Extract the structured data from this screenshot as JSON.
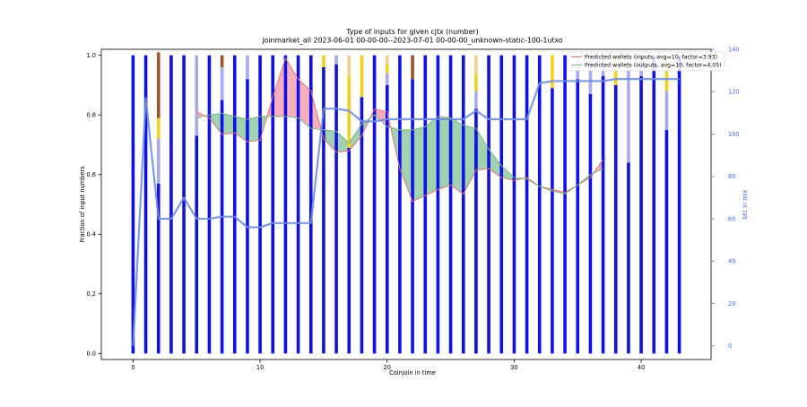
{
  "chart_data": {
    "type": "bar",
    "title": "Type of inputs for given cjtx (number)",
    "subtitle": "joinmarket_all 2023-06-01 00-00-00--2023-07-01 00-00-00_unknown-static-100-1utxo",
    "xlabel": "Coinjoin in time",
    "ylabel": "Fraction of input numbers",
    "y2label": "btc in mix",
    "xlim": [
      -2.5,
      45.5
    ],
    "ylim": [
      -0.02,
      1.02
    ],
    "y2lim": [
      -6.4,
      140
    ],
    "xticks": [
      0,
      10,
      20,
      30,
      40
    ],
    "yticks": [
      0.0,
      0.2,
      0.4,
      0.6,
      0.8,
      1.0
    ],
    "y2ticks": [
      0,
      20,
      40,
      60,
      80,
      100,
      120,
      140
    ],
    "grid": false,
    "legend_position": "top-right",
    "colors": {
      "fresh": "#1010e8",
      "remix": "#a9a9f0",
      "gold": "#f5d020",
      "peach": "#f7ce8a",
      "brown": "#a0522d",
      "btc_line": "#6f8ee0",
      "inputs_line": "#e57373",
      "outputs_line": "#7cb87c",
      "fill_red": "#f7a1b1",
      "fill_green": "#8fcaa2"
    },
    "bar_categories": [
      "fresh",
      "remix",
      "gold",
      "peach",
      "brown"
    ],
    "bars": [
      [
        1,
        0,
        0,
        0,
        0
      ],
      [
        1,
        0,
        0,
        0,
        0
      ],
      [
        0.57,
        0.15,
        0.07,
        0,
        0.22
      ],
      [
        1,
        0,
        0,
        0,
        0
      ],
      [
        1,
        0,
        0,
        0,
        0
      ],
      [
        0.73,
        0.27,
        0,
        0,
        0
      ],
      [
        1,
        0,
        0,
        0,
        0
      ],
      [
        0.85,
        0.11,
        0,
        0,
        0.04
      ],
      [
        1,
        0,
        0,
        0,
        0
      ],
      [
        0.92,
        0.08,
        0,
        0,
        0
      ],
      [
        1,
        0,
        0,
        0,
        0
      ],
      [
        1,
        0,
        0,
        0,
        0
      ],
      [
        1,
        0,
        0,
        0,
        0
      ],
      [
        1,
        0,
        0,
        0,
        0
      ],
      [
        1,
        0,
        0,
        0,
        0
      ],
      [
        0.96,
        0,
        0.04,
        0,
        0
      ],
      [
        0.97,
        0.03,
        0,
        0,
        0
      ],
      [
        0.69,
        0,
        0.24,
        0.07,
        0
      ],
      [
        0.86,
        0,
        0.14,
        0,
        0
      ],
      [
        1,
        0,
        0,
        0,
        0
      ],
      [
        0.9,
        0.04,
        0.03,
        0.03,
        0
      ],
      [
        1,
        0,
        0,
        0,
        0
      ],
      [
        0.92,
        0,
        0,
        0,
        0.08
      ],
      [
        1,
        0,
        0,
        0,
        0
      ],
      [
        1,
        0,
        0,
        0,
        0
      ],
      [
        1,
        0,
        0,
        0,
        0
      ],
      [
        1,
        0,
        0,
        0,
        0
      ],
      [
        0.82,
        0.06,
        0.06,
        0.06,
        0
      ],
      [
        1,
        0,
        0,
        0,
        0
      ],
      [
        1,
        0,
        0,
        0,
        0
      ],
      [
        1,
        0,
        0,
        0,
        0
      ],
      [
        1,
        0,
        0,
        0,
        0
      ],
      [
        1,
        0,
        0,
        0,
        0
      ],
      [
        0.89,
        0,
        0.11,
        0,
        0
      ],
      [
        1,
        0,
        0,
        0,
        0
      ],
      [
        0.92,
        0.08,
        0,
        0,
        0
      ],
      [
        0.87,
        0.13,
        0,
        0,
        0
      ],
      [
        0.93,
        0.07,
        0,
        0,
        0
      ],
      [
        0.9,
        0,
        0.1,
        0,
        0
      ],
      [
        0.64,
        0.32,
        0,
        0.04,
        0
      ],
      [
        0.93,
        0.07,
        0,
        0,
        0
      ],
      [
        1,
        0,
        0,
        0,
        0
      ],
      [
        0.75,
        0.13,
        0.12,
        0,
        0
      ],
      [
        1,
        0,
        0,
        0,
        0
      ]
    ],
    "btc_in_mix": [
      0,
      117,
      60,
      60,
      70,
      60,
      60,
      61,
      61,
      56,
      56,
      58,
      58,
      58,
      58,
      112,
      112,
      111,
      106,
      106,
      107,
      107,
      107,
      107,
      107,
      107,
      107,
      111,
      107,
      107,
      107,
      107,
      124,
      125,
      125,
      125,
      125,
      125,
      126,
      126,
      126,
      126,
      126,
      126
    ],
    "series": [
      {
        "name": "Predicted wallets (inputs, avg=10, factor=3.93)",
        "x": [
          5,
          6,
          7,
          8,
          9,
          10,
          11,
          12,
          13,
          14,
          15,
          16,
          17,
          18,
          19,
          20,
          21,
          22,
          23,
          24,
          25,
          26,
          27,
          28,
          29,
          30,
          31,
          32,
          33,
          34,
          35,
          36,
          37
        ],
        "values": [
          0.81,
          0.79,
          0.735,
          0.74,
          0.71,
          0.715,
          0.86,
          0.99,
          0.92,
          0.88,
          0.72,
          0.675,
          0.68,
          0.73,
          0.82,
          0.81,
          0.62,
          0.51,
          0.53,
          0.55,
          0.565,
          0.535,
          0.615,
          0.62,
          0.59,
          0.58,
          0.59,
          0.56,
          0.55,
          0.54,
          0.565,
          0.59,
          0.65
        ]
      },
      {
        "name": "Predicted wallets (outputs, avg=10, factor=4.05)",
        "x": [
          5,
          6,
          7,
          8,
          9,
          10,
          11,
          12,
          13,
          14,
          15,
          16,
          17,
          18,
          19,
          20,
          21,
          22,
          23,
          24,
          25,
          26,
          27,
          28,
          29,
          30,
          31,
          32,
          33,
          34,
          35,
          36,
          37
        ],
        "values": [
          0.79,
          0.8,
          0.805,
          0.795,
          0.785,
          0.795,
          0.795,
          0.795,
          0.79,
          0.755,
          0.75,
          0.745,
          0.705,
          0.77,
          0.8,
          0.76,
          0.75,
          0.75,
          0.76,
          0.795,
          0.79,
          0.765,
          0.755,
          0.685,
          0.63,
          0.59,
          0.585,
          0.56,
          0.545,
          0.535,
          0.565,
          0.6,
          0.62
        ]
      }
    ]
  }
}
